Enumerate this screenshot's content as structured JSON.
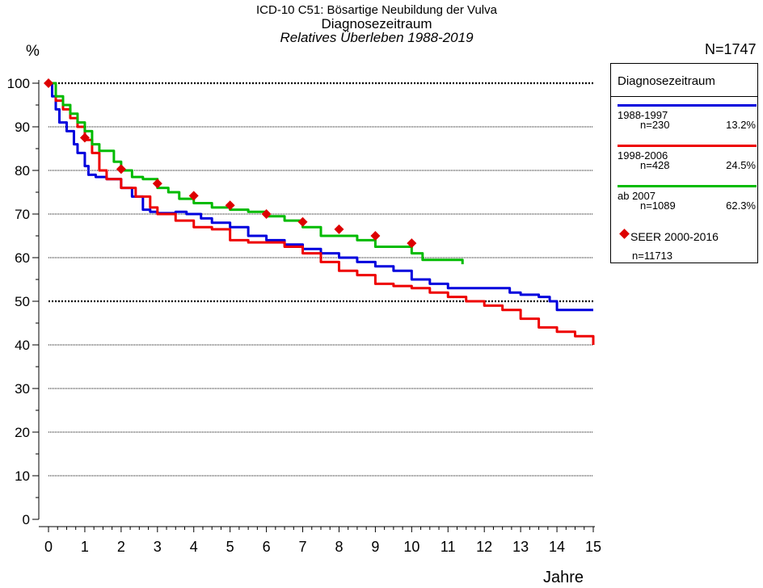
{
  "header": {
    "title": "ICD-10 C51: Bösartige Neubildung der Vulva",
    "subtitle": "Diagnosezeitraum",
    "subtitle2": "Relatives Überleben 1988-2019",
    "n_total": "N=1747",
    "ylabel": "%",
    "xlabel": "Jahre"
  },
  "legend": {
    "title": "Diagnosezeitraum",
    "items": [
      {
        "label": "1988-1997",
        "n": "n=230",
        "pct": "13.2%",
        "color": "#0000dd"
      },
      {
        "label": "1998-2006",
        "n": "n=428",
        "pct": "24.5%",
        "color": "#ee0000"
      },
      {
        "label": "ab 2007",
        "n": "n=1089",
        "pct": "62.3%",
        "color": "#00bb00"
      }
    ],
    "seer": {
      "label": "SEER 2000-2016",
      "n": "n=11713",
      "color": "#dd0000"
    }
  },
  "chart_data": {
    "type": "line",
    "xlabel": "Jahre",
    "ylabel": "%",
    "xlim": [
      0,
      15
    ],
    "ylim": [
      0,
      100
    ],
    "xticks": [
      "0",
      "1",
      "2",
      "3",
      "4",
      "5",
      "6",
      "7",
      "8",
      "9",
      "10",
      "11",
      "12",
      "13",
      "14",
      "15"
    ],
    "yticks": [
      "0",
      "10",
      "20",
      "30",
      "40",
      "50",
      "60",
      "70",
      "80",
      "90",
      "100"
    ],
    "reference_lines": [
      100,
      50
    ],
    "series": [
      {
        "name": "1988-1997",
        "color": "#0000dd",
        "x": [
          0,
          0.1,
          0.2,
          0.3,
          0.5,
          0.7,
          0.8,
          1.0,
          1.1,
          1.3,
          1.6,
          2.0,
          2.3,
          2.6,
          2.8,
          3.0,
          3.5,
          3.8,
          4.2,
          4.5,
          5.0,
          5.5,
          6.0,
          6.5,
          7.0,
          7.5,
          8.0,
          8.5,
          9.0,
          9.5,
          10.0,
          10.5,
          11.0,
          11.5,
          12.0,
          12.5,
          12.7,
          13.0,
          13.5,
          13.8,
          14.0,
          14.1,
          14.5,
          15.0
        ],
        "y": [
          100,
          97,
          94,
          91,
          89,
          86,
          84,
          81,
          79,
          78.5,
          78,
          76,
          74,
          71,
          70.5,
          70.2,
          70.5,
          70,
          69,
          68,
          67,
          65,
          64,
          63,
          62,
          61,
          60,
          59,
          58,
          57,
          55,
          54,
          53,
          53,
          53,
          53,
          52,
          51.5,
          51,
          50,
          48,
          48,
          48,
          48
        ]
      },
      {
        "name": "1998-2006",
        "color": "#ee0000",
        "x": [
          0,
          0.2,
          0.4,
          0.6,
          0.8,
          1.0,
          1.2,
          1.4,
          1.6,
          2.0,
          2.4,
          2.8,
          3.0,
          3.5,
          4.0,
          4.5,
          5.0,
          5.5,
          6.0,
          6.5,
          7.0,
          7.5,
          8.0,
          8.5,
          9.0,
          9.5,
          10.0,
          10.5,
          11.0,
          11.5,
          12.0,
          12.5,
          13.0,
          13.5,
          14.0,
          14.5,
          15.0
        ],
        "y": [
          100,
          96,
          94,
          92,
          90,
          87,
          84,
          80,
          78,
          76,
          74,
          71.5,
          70,
          68.5,
          67,
          66.5,
          64,
          63.5,
          63.5,
          62.5,
          61,
          59,
          57,
          56,
          54,
          53.5,
          53,
          52,
          51,
          50,
          49,
          48,
          46,
          44,
          43,
          42,
          40
        ]
      },
      {
        "name": "ab 2007",
        "color": "#00bb00",
        "x": [
          0,
          0.2,
          0.4,
          0.6,
          0.8,
          1.0,
          1.2,
          1.4,
          1.8,
          2.0,
          2.3,
          2.6,
          3.0,
          3.3,
          3.6,
          4.0,
          4.5,
          5.0,
          5.5,
          6.0,
          6.5,
          7.0,
          7.5,
          8.0,
          8.5,
          9.0,
          9.5,
          10.0,
          10.3,
          10.7,
          11.0,
          11.4
        ],
        "y": [
          100,
          97,
          95,
          93,
          91,
          89,
          86,
          84.5,
          82,
          80,
          78.5,
          78,
          76,
          75,
          73.5,
          72.5,
          71.5,
          71,
          70.5,
          69.5,
          68.5,
          67,
          65,
          65,
          64,
          62.5,
          62.5,
          61,
          59.5,
          59.5,
          59.5,
          58.5
        ]
      }
    ],
    "markers": {
      "name": "SEER 2000-2016",
      "shape": "diamond",
      "color": "#dd0000",
      "x": [
        0,
        1,
        2,
        3,
        4,
        5,
        6,
        7,
        8,
        9,
        10
      ],
      "y": [
        100,
        87.5,
        80.3,
        77,
        74.2,
        72,
        70,
        68.2,
        66.5,
        65,
        63.3
      ]
    }
  }
}
